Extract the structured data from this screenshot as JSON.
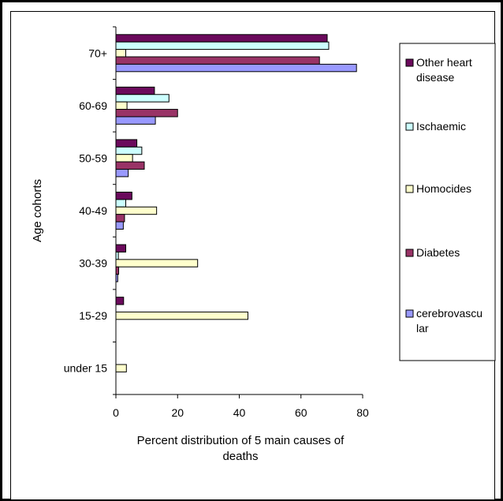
{
  "chart_data": {
    "type": "bar",
    "orientation": "horizontal",
    "title": "",
    "xlabel_lines": [
      "Percent distribution of 5 main causes of",
      "deaths"
    ],
    "ylabel": "Age cohorts",
    "xlim": [
      0,
      80
    ],
    "x_ticks": [
      0,
      20,
      40,
      60,
      80
    ],
    "grid": false,
    "legend_position": "right",
    "categories": [
      "70+",
      "60-69",
      "50-59",
      "40-49",
      "30-39",
      "15-29",
      "under 15"
    ],
    "series": [
      {
        "name": "Other heart disease",
        "legend_lines": [
          "Other heart",
          "disease"
        ],
        "color": "#6B0A5C",
        "values": [
          68.5,
          12.5,
          6.8,
          5.2,
          3.2,
          2.5,
          0
        ]
      },
      {
        "name": "Ischaemic",
        "legend_lines": [
          "Ischaemic"
        ],
        "color": "#CCFFFF",
        "values": [
          69.0,
          17.2,
          8.4,
          3.2,
          0.8,
          0,
          0
        ]
      },
      {
        "name": "Homocides",
        "legend_lines": [
          "Homocides"
        ],
        "color": "#FFFFCC",
        "values": [
          3.2,
          3.6,
          5.4,
          13.2,
          26.5,
          42.8,
          3.4
        ]
      },
      {
        "name": "Diabetes",
        "legend_lines": [
          "Diabetes"
        ],
        "color": "#993366",
        "values": [
          66.0,
          20.0,
          9.2,
          2.8,
          0.9,
          0,
          0
        ]
      },
      {
        "name": "cerebrovascular",
        "legend_lines": [
          "cerebrovascu",
          "lar"
        ],
        "color": "#9999FF",
        "values": [
          78.0,
          12.8,
          4.0,
          2.4,
          0.6,
          0,
          0
        ]
      }
    ]
  }
}
